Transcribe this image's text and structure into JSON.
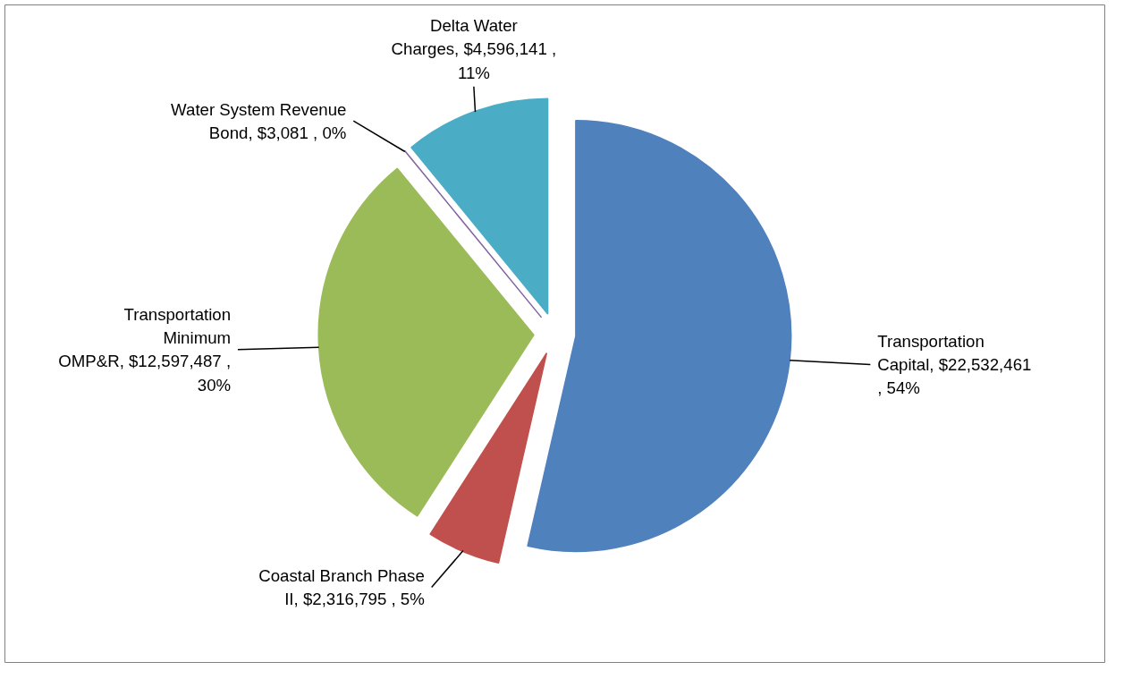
{
  "chart_data": {
    "type": "pie",
    "categories": [
      "Transportation Capital",
      "Coastal Branch Phase II",
      "Transportation Minimum OMP&R",
      "Water System Revenue Bond",
      "Delta Water Charges"
    ],
    "values": [
      22532461,
      2316795,
      12597487,
      3081,
      4596141
    ],
    "colors": [
      "#4f81bd",
      "#c0504d",
      "#9bbb59",
      "#8064a2",
      "#4bacc6"
    ],
    "value_labels": [
      "$22,532,461 , 54%",
      "$2,316,795 , 5%",
      "$12,597,487 , 30%",
      "$3,081 , 0%",
      "$4,596,141 , 11%"
    ]
  }
}
